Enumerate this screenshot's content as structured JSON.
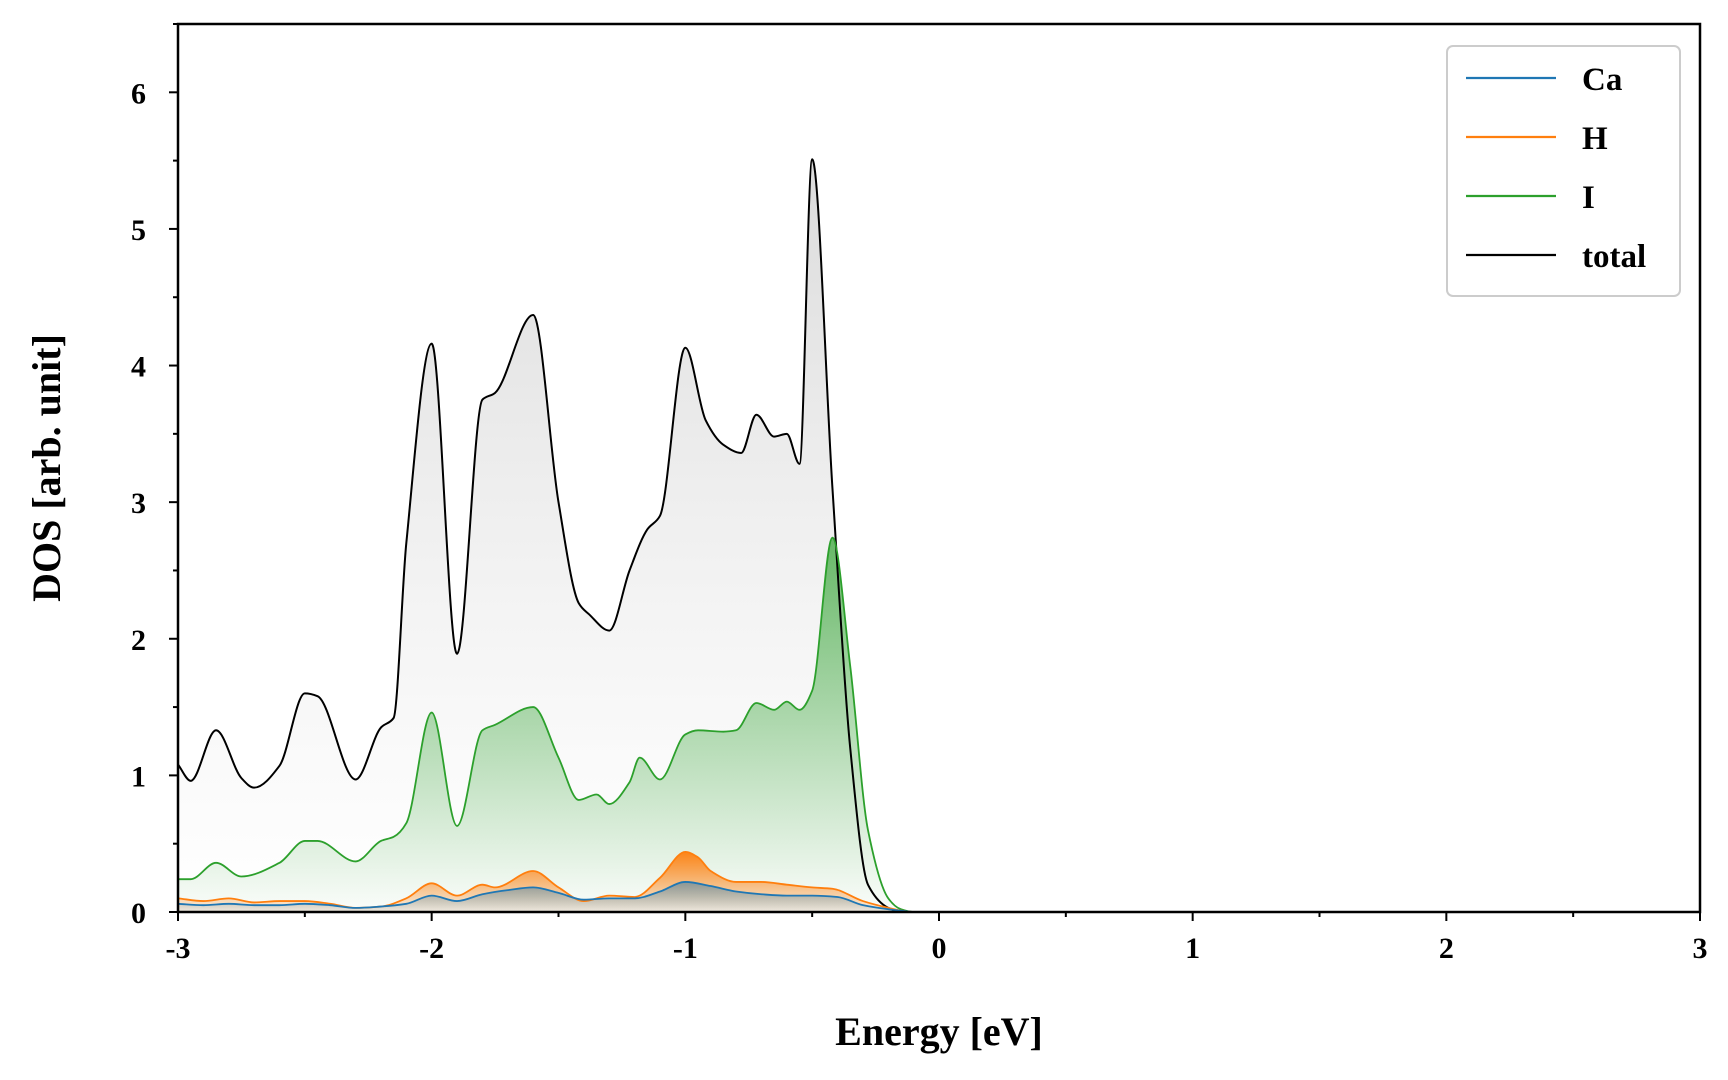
{
  "chart_data": {
    "type": "area",
    "xlabel": "Energy [eV]",
    "ylabel": "DOS [arb. unit]",
    "xlim": [
      -3,
      3
    ],
    "ylim": [
      0,
      6.5
    ],
    "x_ticks": [
      -3,
      -2,
      -1,
      0,
      1,
      2,
      3
    ],
    "x_tick_labels": [
      "-3",
      "-2",
      "-1",
      "0",
      "1",
      "2",
      "3"
    ],
    "y_ticks": [
      0,
      1,
      2,
      3,
      4,
      5,
      6
    ],
    "y_tick_labels": [
      "0",
      "1",
      "2",
      "3",
      "4",
      "5",
      "6"
    ],
    "grid": false,
    "legend_position": "top-right",
    "series": [
      {
        "name": "Ca",
        "color": "#1f77b4",
        "x": [
          -3.0,
          -2.9,
          -2.8,
          -2.7,
          -2.6,
          -2.5,
          -2.4,
          -2.3,
          -2.2,
          -2.1,
          -2.0,
          -1.9,
          -1.8,
          -1.7,
          -1.6,
          -1.5,
          -1.4,
          -1.3,
          -1.2,
          -1.1,
          -1.0,
          -0.9,
          -0.8,
          -0.7,
          -0.6,
          -0.5,
          -0.4,
          -0.3,
          -0.2,
          -0.15,
          -0.1,
          0.0,
          3.0
        ],
        "values": [
          0.06,
          0.05,
          0.06,
          0.05,
          0.05,
          0.06,
          0.05,
          0.03,
          0.04,
          0.06,
          0.12,
          0.08,
          0.13,
          0.16,
          0.18,
          0.14,
          0.09,
          0.1,
          0.1,
          0.15,
          0.22,
          0.19,
          0.15,
          0.13,
          0.12,
          0.12,
          0.11,
          0.05,
          0.02,
          0.01,
          0.0,
          0.0,
          0.0
        ]
      },
      {
        "name": "H",
        "color": "#ff7f0e",
        "x": [
          -3.0,
          -2.9,
          -2.8,
          -2.7,
          -2.6,
          -2.5,
          -2.4,
          -2.3,
          -2.2,
          -2.1,
          -2.0,
          -1.9,
          -1.8,
          -1.75,
          -1.6,
          -1.5,
          -1.4,
          -1.3,
          -1.2,
          -1.1,
          -1.0,
          -0.95,
          -0.9,
          -0.8,
          -0.7,
          -0.6,
          -0.5,
          -0.42,
          -0.3,
          -0.2,
          -0.15,
          -0.1,
          0.0,
          3.0
        ],
        "values": [
          0.1,
          0.08,
          0.1,
          0.07,
          0.08,
          0.08,
          0.06,
          0.03,
          0.04,
          0.1,
          0.21,
          0.12,
          0.2,
          0.18,
          0.3,
          0.18,
          0.08,
          0.12,
          0.11,
          0.25,
          0.44,
          0.4,
          0.3,
          0.22,
          0.22,
          0.2,
          0.18,
          0.17,
          0.08,
          0.03,
          0.01,
          0.0,
          0.0,
          0.0
        ]
      },
      {
        "name": "I",
        "color": "#2ca02c",
        "x": [
          -3.0,
          -2.95,
          -2.85,
          -2.75,
          -2.6,
          -2.5,
          -2.45,
          -2.3,
          -2.2,
          -2.15,
          -2.1,
          -2.0,
          -1.9,
          -1.8,
          -1.75,
          -1.6,
          -1.5,
          -1.42,
          -1.35,
          -1.3,
          -1.22,
          -1.18,
          -1.1,
          -1.0,
          -0.95,
          -0.85,
          -0.8,
          -0.72,
          -0.65,
          -0.6,
          -0.55,
          -0.5,
          -0.42,
          -0.35,
          -0.28,
          -0.2,
          -0.15,
          -0.1,
          0.0,
          3.0
        ],
        "values": [
          0.24,
          0.24,
          0.36,
          0.26,
          0.36,
          0.52,
          0.52,
          0.37,
          0.52,
          0.55,
          0.65,
          1.46,
          0.63,
          1.33,
          1.37,
          1.5,
          1.13,
          0.82,
          0.86,
          0.79,
          0.95,
          1.13,
          0.97,
          1.3,
          1.33,
          1.32,
          1.33,
          1.53,
          1.48,
          1.54,
          1.48,
          1.62,
          2.74,
          1.8,
          0.6,
          0.1,
          0.02,
          0.0,
          0.0,
          0.0
        ]
      },
      {
        "name": "total",
        "color": "#000000",
        "x": [
          -3.0,
          -2.95,
          -2.85,
          -2.75,
          -2.7,
          -2.6,
          -2.5,
          -2.45,
          -2.3,
          -2.2,
          -2.15,
          -2.1,
          -2.0,
          -1.9,
          -1.8,
          -1.75,
          -1.6,
          -1.5,
          -1.42,
          -1.38,
          -1.3,
          -1.22,
          -1.15,
          -1.1,
          -1.0,
          -0.92,
          -0.85,
          -0.78,
          -0.72,
          -0.65,
          -0.6,
          -0.55,
          -0.5,
          -0.42,
          -0.35,
          -0.28,
          -0.2,
          -0.15,
          -0.1,
          0.0,
          3.0
        ],
        "values": [
          1.08,
          0.96,
          1.33,
          0.98,
          0.91,
          1.07,
          1.6,
          1.58,
          0.97,
          1.35,
          1.42,
          2.7,
          4.16,
          1.89,
          3.75,
          3.8,
          4.37,
          3.0,
          2.26,
          2.18,
          2.06,
          2.5,
          2.8,
          2.9,
          4.13,
          3.6,
          3.42,
          3.36,
          3.64,
          3.48,
          3.5,
          3.28,
          5.51,
          3.1,
          1.2,
          0.2,
          0.03,
          0.0,
          0.0,
          0.0,
          0.0
        ]
      }
    ]
  }
}
